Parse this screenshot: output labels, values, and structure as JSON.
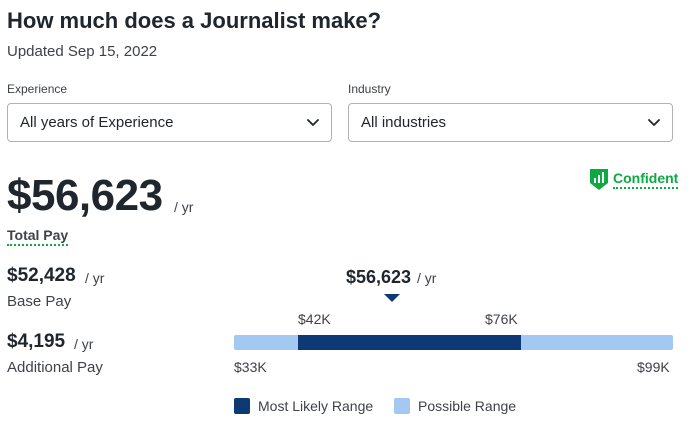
{
  "header": {
    "title": "How much does a Journalist make?",
    "updated": "Updated Sep 15, 2022"
  },
  "filters": {
    "experience": {
      "label": "Experience",
      "value": "All years of Experience"
    },
    "industry": {
      "label": "Industry",
      "value": "All industries"
    }
  },
  "confidence": {
    "label": "Confident",
    "icon": "bar-chart-shield-icon",
    "color": "#0caa41"
  },
  "total_pay": {
    "amount": "$56,623",
    "unit": "/ yr",
    "label": "Total Pay"
  },
  "base_pay": {
    "amount": "$52,428",
    "unit": "/ yr",
    "label": "Base Pay"
  },
  "additional_pay": {
    "amount": "$4,195",
    "unit": "/ yr",
    "label": "Additional Pay"
  },
  "range": {
    "median": {
      "amount": "$56,623",
      "unit": "/ yr"
    },
    "likely_low": "$42K",
    "likely_high": "$76K",
    "possible_low": "$33K",
    "possible_high": "$99K",
    "likely_color": "#0d3a75",
    "possible_color": "#a3c8f2"
  },
  "legend": {
    "most_likely": "Most Likely Range",
    "possible": "Possible Range"
  }
}
